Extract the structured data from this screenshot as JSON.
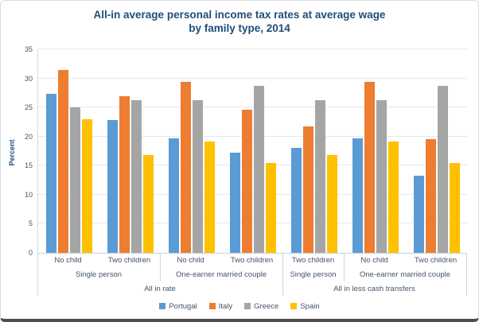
{
  "frame": {
    "background": "#FFFFFF",
    "border_color": "#D9DCE5",
    "shadow_color": "#4E4E50"
  },
  "text_colors": {
    "title": "#1F4E79",
    "axis_text": "#44546A",
    "gridline": "#E3E9F1"
  },
  "chart_data": {
    "type": "bar",
    "title": "All-in average personal income tax rates at average wage by family type, 2014",
    "title_line1": "All-in average personal income tax rates at average wage",
    "title_line2": "by family type, 2014",
    "xlabel": "",
    "ylabel": "Percent",
    "ylim": [
      0,
      35
    ],
    "ytick_step": 5,
    "grid": true,
    "legend_position": "bottom",
    "group_labels": [
      "No child",
      "Two children",
      "No child",
      "Two children",
      "Two children",
      "No child",
      "Two children"
    ],
    "family_row": [
      {
        "label": "Single person",
        "span": 2
      },
      {
        "label": "One-earner married couple",
        "span": 2
      },
      {
        "label": "Single person",
        "span": 1
      },
      {
        "label": "One-earner married couple",
        "span": 2
      }
    ],
    "section_row": [
      {
        "label": "All in rate",
        "span": 4
      },
      {
        "label": "All in less cash transfers",
        "span": 3
      }
    ],
    "series": [
      {
        "name": "Portugal",
        "color": "#5B9BD5",
        "values": [
          27.3,
          22.9,
          19.7,
          17.2,
          18.0,
          19.7,
          13.3
        ]
      },
      {
        "name": "Italy",
        "color": "#ED7D31",
        "values": [
          31.5,
          27.0,
          29.4,
          24.6,
          21.8,
          29.4,
          19.5
        ]
      },
      {
        "name": "Greece",
        "color": "#A5A5A5",
        "values": [
          25.0,
          26.3,
          26.3,
          28.7,
          26.3,
          26.3,
          28.7
        ]
      },
      {
        "name": "Spain",
        "color": "#FFC000",
        "values": [
          23.0,
          16.8,
          19.2,
          15.4,
          16.8,
          19.2,
          15.4
        ]
      }
    ]
  }
}
